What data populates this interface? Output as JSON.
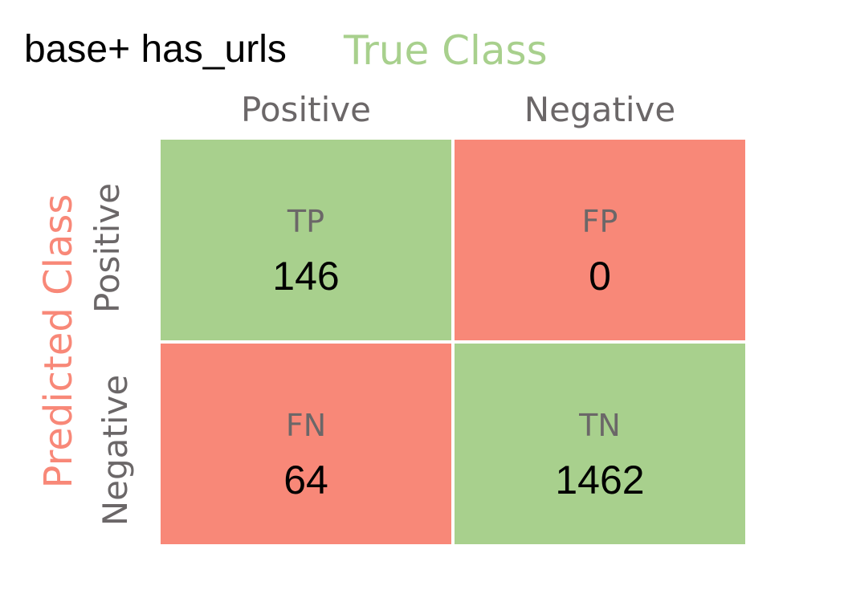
{
  "chart_data": {
    "type": "table",
    "title": "base+ has_urls",
    "column_header": "True Class",
    "row_header": "Predicted Class",
    "columns": [
      "Positive",
      "Negative"
    ],
    "rows": [
      "Positive",
      "Negative"
    ],
    "cells": [
      {
        "code": "TP",
        "value": 146,
        "value_label": "146",
        "color": "#a8d08d"
      },
      {
        "code": "FP",
        "value": 0,
        "value_label": "0",
        "color": "#f88878"
      },
      {
        "code": "FN",
        "value": 64,
        "value_label": "64",
        "color": "#f88878"
      },
      {
        "code": "TN",
        "value": 1462,
        "value_label": "1462",
        "color": "#a8d08d"
      }
    ]
  },
  "colors": {
    "correct": "#a8d08d",
    "error": "#f88878",
    "label_gray": "#6b6768"
  }
}
